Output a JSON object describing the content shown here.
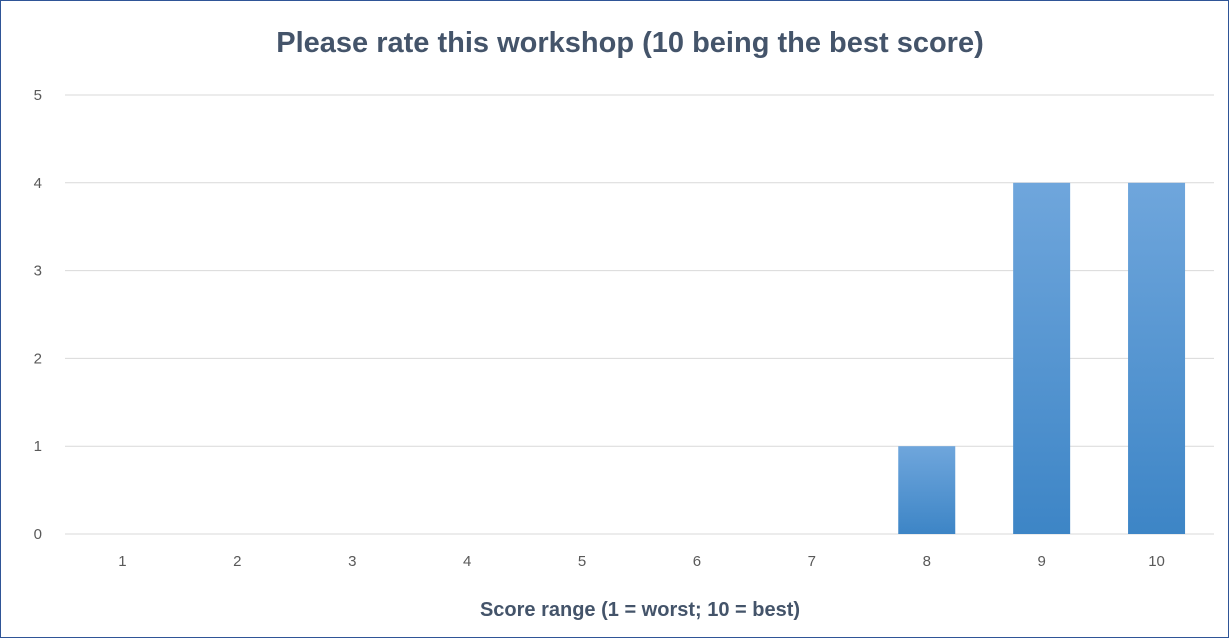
{
  "chart_data": {
    "type": "bar",
    "title": "Please rate this workshop (10 being the best score)",
    "xlabel": "Score range (1 = worst; 10 = best)",
    "ylabel": "",
    "categories": [
      "1",
      "2",
      "3",
      "4",
      "5",
      "6",
      "7",
      "8",
      "9",
      "10"
    ],
    "values": [
      0,
      0,
      0,
      0,
      0,
      0,
      0,
      1,
      4,
      4
    ],
    "ylim": [
      0,
      5
    ],
    "yticks": [
      "0",
      "1",
      "2",
      "3",
      "4",
      "5"
    ],
    "grid": true,
    "legend": "none",
    "colors": {
      "bar_top": "#6fa6dc",
      "bar_bottom": "#3d85c6",
      "grid": "#d9d9d9",
      "border": "#2f5597"
    }
  }
}
